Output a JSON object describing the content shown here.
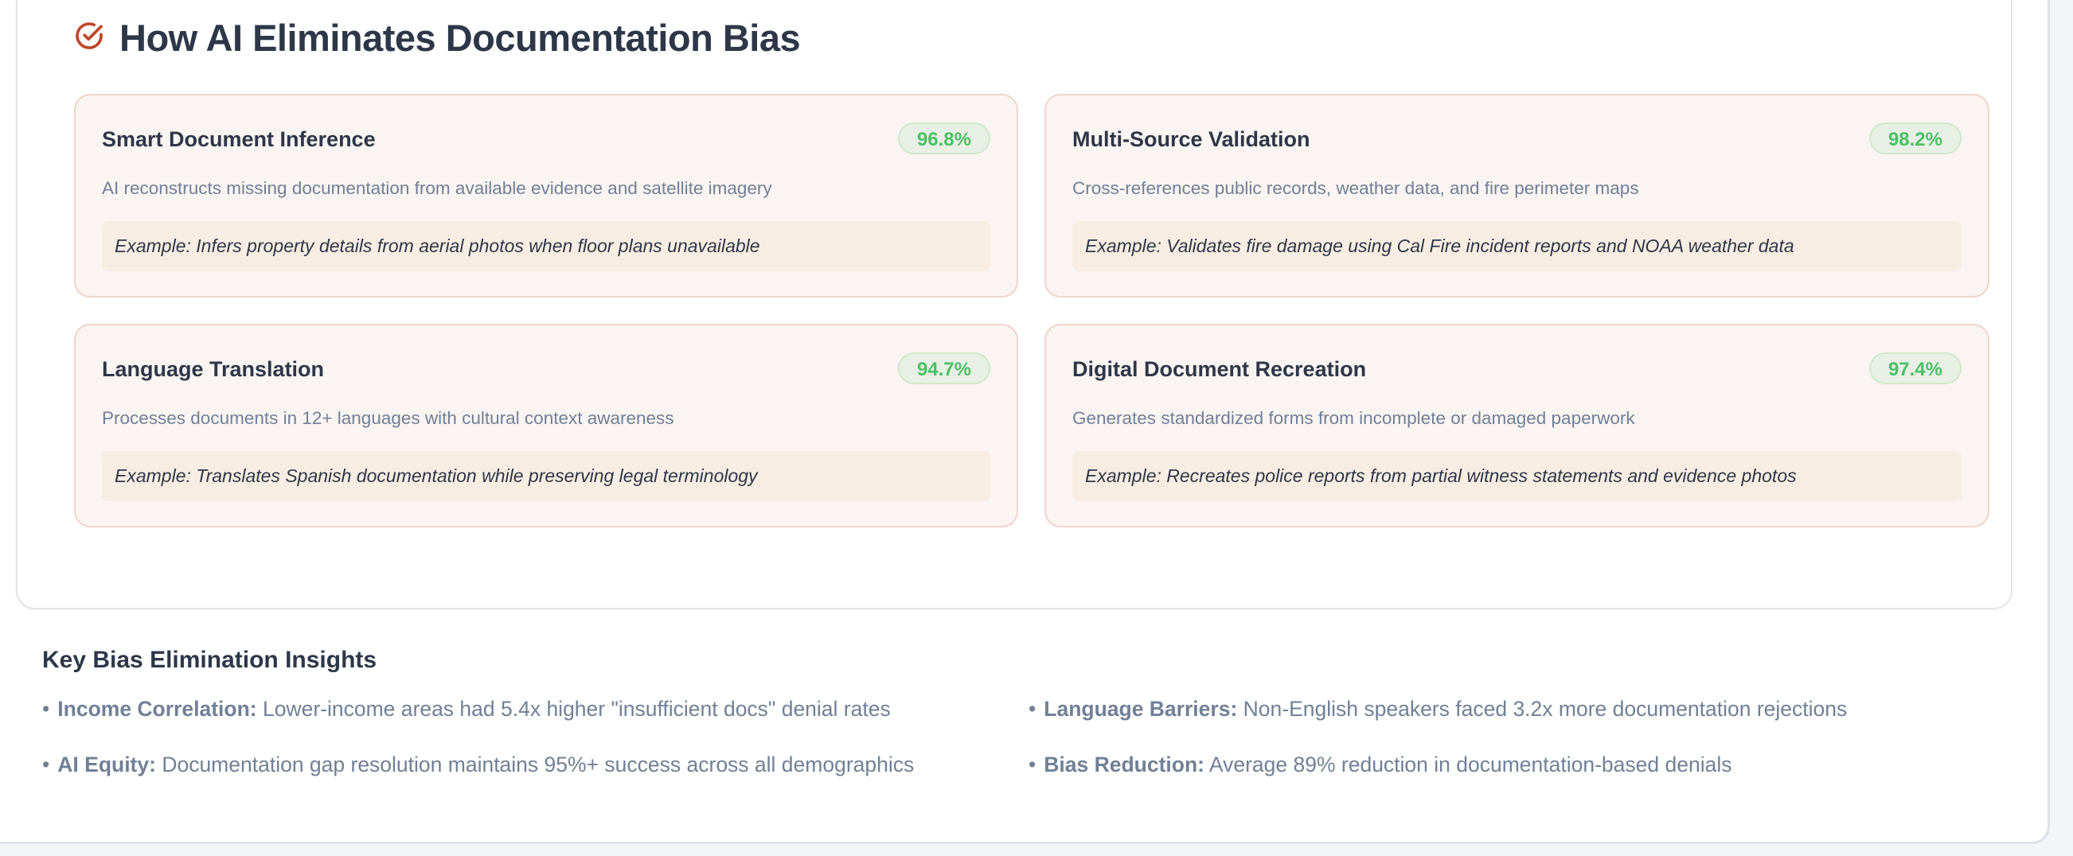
{
  "section": {
    "title": "How AI Eliminates Documentation Bias",
    "icon": "check-circle-icon",
    "accent_color": "#c0452a",
    "cards": [
      {
        "title": "Smart Document Inference",
        "badge": "96.8%",
        "description": "AI reconstructs missing documentation from available evidence and satellite imagery",
        "example": "Example: Infers property details from aerial photos when floor plans unavailable"
      },
      {
        "title": "Multi-Source Validation",
        "badge": "98.2%",
        "description": "Cross-references public records, weather data, and fire perimeter maps",
        "example": "Example: Validates fire damage using Cal Fire incident reports and NOAA weather data"
      },
      {
        "title": "Language Translation",
        "badge": "94.7%",
        "description": "Processes documents in 12+ languages with cultural context awareness",
        "example": "Example: Translates Spanish documentation while preserving legal terminology"
      },
      {
        "title": "Digital Document Recreation",
        "badge": "97.4%",
        "description": "Generates standardized forms from incomplete or damaged paperwork",
        "example": "Example: Recreates police reports from partial witness statements and evidence photos"
      }
    ]
  },
  "insights": {
    "title": "Key Bias Elimination Insights",
    "bullet": "•",
    "items": [
      {
        "label": "Income Correlation:",
        "text": " Lower-income areas had 5.4x higher \"insufficient docs\" denial rates"
      },
      {
        "label": "Language Barriers:",
        "text": " Non-English speakers faced 3.2x more documentation rejections"
      },
      {
        "label": "AI Equity:",
        "text": " Documentation gap resolution maintains 95%+ success across all demographics"
      },
      {
        "label": "Bias Reduction:",
        "text": " Average 89% reduction in documentation-based denials"
      }
    ]
  }
}
